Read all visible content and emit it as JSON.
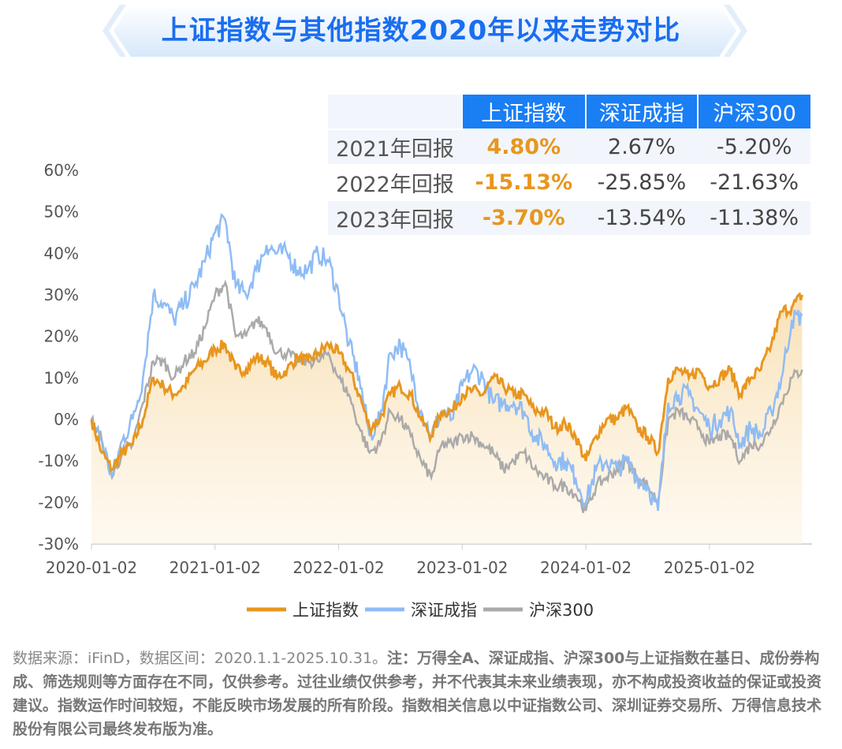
{
  "title": "上证指数与其他指数2020年以来走势对比",
  "table": {
    "headers": [
      "上证指数",
      "深证成指",
      "沪深300"
    ],
    "rows": [
      {
        "label": "2021年回报",
        "values": [
          "4.80%",
          "2.67%",
          "-5.20%"
        ]
      },
      {
        "label": "2022年回报",
        "values": [
          "-15.13%",
          "-25.85%",
          "-21.63%"
        ]
      },
      {
        "label": "2023年回报",
        "values": [
          "-3.70%",
          "-13.54%",
          "-11.38%"
        ]
      }
    ]
  },
  "note": {
    "source": "数据来源：iFinD，数据区间：2020.1.1-2025.10.31。",
    "bold": "注：万得全A、深证成指、沪深300与上证指数在基日、成份券构成、筛选规则等方面存在不同，仅供参考。过往业绩仅供参考，并不代表其未来业绩表现，亦不构成投资收益的保证或投资建议。指数运作时间较短，不能反映市场发展的所有阶段。指数相关信息以中证指数公司、深圳证券交易所、万得信息技术股份有限公司最终发布版为准。"
  },
  "chart_data": {
    "type": "line",
    "title": "上证指数与其他指数2020年以来走势对比",
    "ylim": [
      -30,
      60
    ],
    "yticks": [
      -30,
      -20,
      -10,
      0,
      10,
      20,
      30,
      40,
      50,
      60
    ],
    "ytick_labels": [
      "-30%",
      "-20%",
      "-10%",
      "0%",
      "10%",
      "20%",
      "30%",
      "40%",
      "50%",
      "60%"
    ],
    "xticks": [
      "2020-01-02",
      "2021-01-02",
      "2022-01-02",
      "2023-01-02",
      "2024-01-02",
      "2025-01-02"
    ],
    "x_range_years": [
      2020.0,
      2025.83
    ],
    "legend": "bottom",
    "sampling": "monthly from 2020-01 to 2025-10, values in % (approximate)",
    "series": [
      {
        "name": "上证指数",
        "color": "#e8961e",
        "values": [
          0,
          -8,
          -12,
          -8,
          -6,
          0,
          10,
          8,
          6,
          8,
          12,
          14,
          17,
          18,
          12,
          12,
          15,
          14,
          10,
          12,
          15,
          14,
          16,
          18,
          16,
          12,
          6,
          -2,
          0,
          6,
          8,
          6,
          0,
          -4,
          2,
          2,
          6,
          7,
          6,
          10,
          8,
          6,
          6,
          2,
          2,
          -2,
          -1,
          -4,
          -10,
          -4,
          0,
          0,
          3,
          -2,
          -4,
          -8,
          10,
          12,
          10,
          12,
          8,
          10,
          12,
          6,
          10,
          12,
          18,
          26,
          27,
          30
        ]
      },
      {
        "name": "深证成指",
        "color": "#8fbcf5",
        "values": [
          0,
          -5,
          -14,
          -5,
          0,
          10,
          30,
          28,
          24,
          28,
          32,
          38,
          45,
          48,
          32,
          30,
          36,
          42,
          40,
          40,
          36,
          36,
          40,
          38,
          30,
          18,
          10,
          -4,
          0,
          16,
          18,
          12,
          2,
          -4,
          2,
          0,
          8,
          12,
          10,
          4,
          4,
          4,
          2,
          -4,
          -6,
          -10,
          -10,
          -14,
          -20,
          -12,
          -10,
          -12,
          -10,
          -14,
          -16,
          -22,
          4,
          6,
          6,
          2,
          -2,
          0,
          2,
          -6,
          -2,
          -4,
          2,
          10,
          24,
          25
        ]
      },
      {
        "name": "沪深300",
        "color": "#aaaaaa",
        "values": [
          0,
          -5,
          -14,
          -8,
          -6,
          4,
          14,
          14,
          10,
          14,
          16,
          22,
          30,
          33,
          20,
          20,
          24,
          22,
          16,
          16,
          14,
          14,
          14,
          16,
          10,
          6,
          -2,
          -8,
          -6,
          2,
          0,
          -4,
          -10,
          -14,
          -6,
          -6,
          -4,
          -4,
          -6,
          -8,
          -12,
          -10,
          -8,
          -12,
          -14,
          -16,
          -16,
          -18,
          -22,
          -16,
          -14,
          -12,
          -10,
          -14,
          -16,
          -20,
          0,
          2,
          0,
          -2,
          -6,
          -4,
          -4,
          -10,
          -6,
          -6,
          -2,
          4,
          10,
          12
        ]
      }
    ]
  }
}
